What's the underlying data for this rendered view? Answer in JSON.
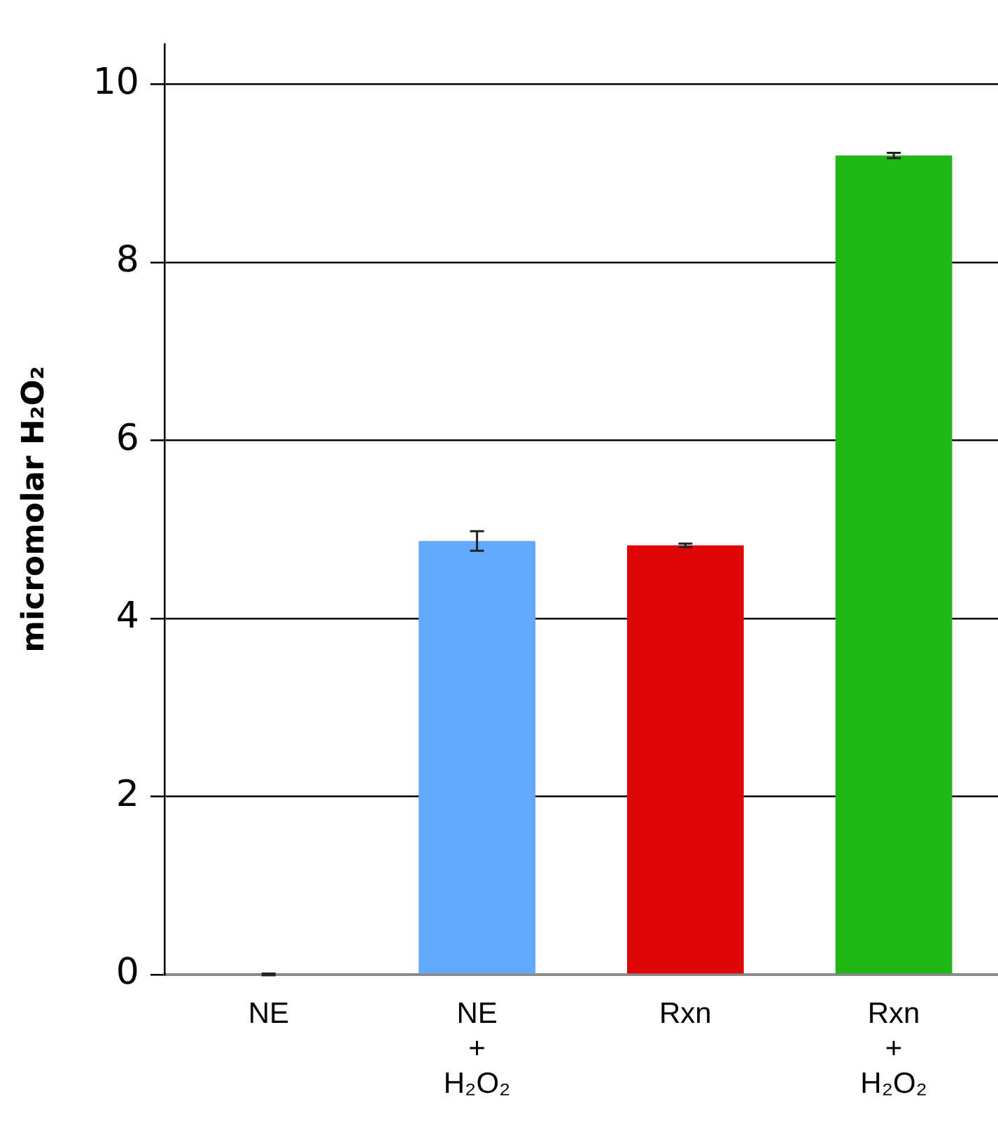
{
  "chart_data": {
    "type": "bar",
    "ylabel": "micromolar H₂O₂",
    "categories": [
      "NE",
      "NE\n+\nH₂O₂",
      "Rxn",
      "Rxn\n+\nH₂O₂"
    ],
    "values": [
      0,
      4.87,
      4.82,
      9.2
    ],
    "colors": [
      "#62a8ff",
      "#62a8ff",
      "#dd0806",
      "#1fb714"
    ],
    "errors": [
      0.01,
      0.11,
      0.02,
      0.03
    ],
    "ylim": [
      0,
      10.45
    ],
    "yticks": [
      0,
      2,
      4,
      6,
      8,
      10
    ],
    "grid": "y",
    "legend": false
  }
}
